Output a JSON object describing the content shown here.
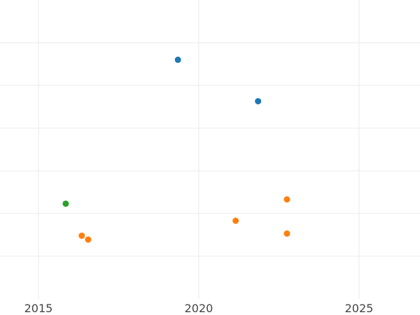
{
  "chart_data": {
    "type": "scatter",
    "title": "",
    "xlabel": "",
    "ylabel": "",
    "xlim": [
      2013.8,
      2026.9
    ],
    "ylim": [
      0,
      7
    ],
    "grid": true,
    "legend": "none",
    "x_ticks": [
      2015,
      2020,
      2025
    ],
    "x_tick_labels": [
      "2015",
      "2020",
      "2025"
    ],
    "y_gridlines": [
      1,
      2,
      3,
      4,
      5,
      6
    ],
    "series": [
      {
        "color": "#1f77b4",
        "points": [
          {
            "x": 2019.35,
            "y": 5.6
          },
          {
            "x": 2021.85,
            "y": 4.63
          }
        ]
      },
      {
        "color": "#ff7f0e",
        "points": [
          {
            "x": 2022.75,
            "y": 2.33
          },
          {
            "x": 2021.15,
            "y": 1.83
          },
          {
            "x": 2022.75,
            "y": 1.53
          },
          {
            "x": 2016.35,
            "y": 1.48
          },
          {
            "x": 2016.55,
            "y": 1.39
          }
        ]
      },
      {
        "color": "#2ca02c",
        "points": [
          {
            "x": 2015.85,
            "y": 2.23
          }
        ]
      }
    ]
  }
}
